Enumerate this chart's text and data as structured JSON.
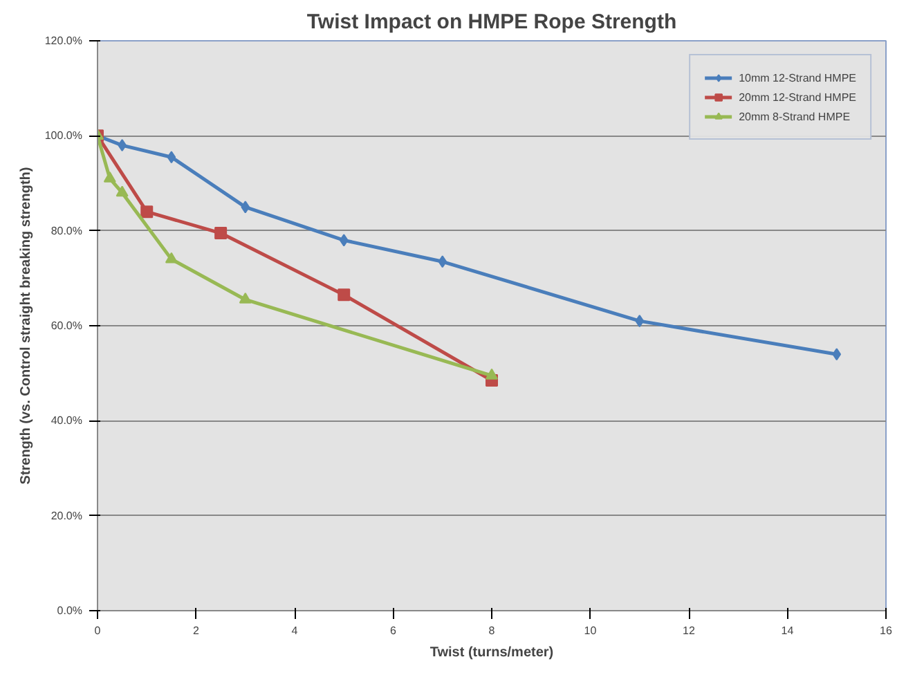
{
  "chart_data": {
    "type": "line",
    "title": "Twist Impact on HMPE Rope Strength",
    "xlabel": "Twist (turns/meter)",
    "ylabel": "Strength (vs. Control straight breaking strength)",
    "series": [
      {
        "name": "10mm 12-Strand HMPE",
        "color": "#4a7ebb",
        "marker": "diamond",
        "x": [
          0,
          0.5,
          1.5,
          3,
          5,
          7,
          11,
          15
        ],
        "values": [
          100,
          98,
          95.5,
          85,
          78,
          73.5,
          61,
          54
        ]
      },
      {
        "name": "20mm 12-Strand HMPE",
        "color": "#be4b48",
        "marker": "square",
        "x": [
          0,
          1,
          2.5,
          5,
          8
        ],
        "values": [
          100,
          84,
          79.5,
          66.5,
          48.5
        ]
      },
      {
        "name": "20mm 8-Strand HMPE",
        "color": "#98b954",
        "marker": "triangle",
        "x": [
          0,
          0.25,
          0.5,
          1.5,
          3,
          8
        ],
        "values": [
          100,
          91,
          88,
          74,
          65.5,
          49.5
        ]
      }
    ],
    "xlim": [
      0,
      16
    ],
    "xticks": [
      0,
      2,
      4,
      6,
      8,
      10,
      12,
      14,
      16
    ],
    "ylim": [
      0,
      120
    ],
    "yticks": [
      {
        "value": 0,
        "label": "0.0%"
      },
      {
        "value": 20,
        "label": "20.0%"
      },
      {
        "value": 40,
        "label": "40.0%"
      },
      {
        "value": 60,
        "label": "60.0%"
      },
      {
        "value": 80,
        "label": "80.0%"
      },
      {
        "value": 100,
        "label": "100.0%"
      },
      {
        "value": 120,
        "label": "120.0%"
      }
    ],
    "grid": "y",
    "legend": "top right"
  }
}
